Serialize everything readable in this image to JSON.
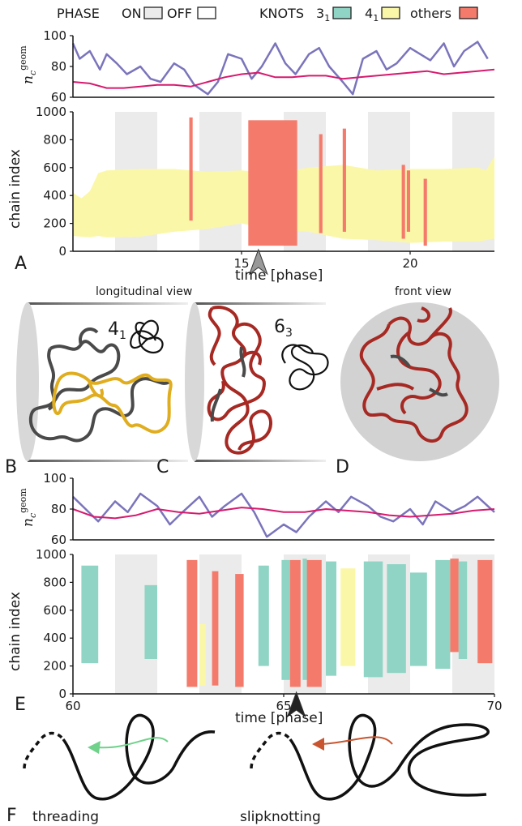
{
  "legend": {
    "phase_label": "PHASE",
    "on_label": "ON",
    "off_label": "OFF",
    "knots_label": "KNOTS",
    "k31_base": "3",
    "k31_sub": "1",
    "k41_base": "4",
    "k41_sub": "1",
    "others_label": "others"
  },
  "colors": {
    "phase_on": "#ebebeb",
    "knot_31": "#8fd4c4",
    "knot_41": "#fbf7a8",
    "knot_other": "#f47b6c",
    "nc_trace": "#7a74bb",
    "nc_mean": "#d61a6e",
    "chain_dark": "#4a4a4a",
    "knot_gold": "#e0ad1f",
    "chain_red": "#a62923",
    "arrow_green": "#6fd18a",
    "arrow_red": "#c8552f"
  },
  "panels": {
    "A": "A",
    "B": "B",
    "C": "C",
    "D": "D",
    "E": "E",
    "F": "F"
  },
  "nc_ylabel_base": "n",
  "nc_ylabel_sub": "c",
  "nc_ylabel_sup": "geom",
  "chain_ylabel": "chain index",
  "xlabel": "time [phase]",
  "views": {
    "longitudinal": "longitudinal view",
    "front": "front view",
    "knot41_base": "4",
    "knot41_sub": "1",
    "knot63_base": "6",
    "knot63_sub": "3"
  },
  "mechanisms": {
    "threading": "threading",
    "slipknotting": "slipknotting"
  },
  "chart_data": [
    {
      "id": "nc-top",
      "type": "line",
      "yticks": [
        "100",
        "80",
        "60"
      ],
      "ylim": [
        60,
        100
      ],
      "xlim": [
        10,
        22.5
      ],
      "series": [
        {
          "role": "trace",
          "x": [
            10,
            10.2,
            10.5,
            10.8,
            11,
            11.3,
            11.6,
            12,
            12.3,
            12.6,
            13,
            13.3,
            13.6,
            14,
            14.3,
            14.6,
            15,
            15.3,
            15.6,
            16,
            16.3,
            16.6,
            17,
            17.3,
            17.6,
            18,
            18.3,
            18.6,
            19,
            19.3,
            19.6,
            20,
            20.3,
            20.6,
            21,
            21.3,
            21.6,
            22,
            22.3
          ],
          "values": [
            95,
            85,
            90,
            78,
            88,
            82,
            75,
            80,
            72,
            70,
            82,
            78,
            68,
            62,
            70,
            88,
            85,
            72,
            80,
            95,
            82,
            75,
            88,
            92,
            80,
            70,
            62,
            85,
            90,
            78,
            82,
            92,
            88,
            84,
            95,
            80,
            90,
            96,
            85
          ]
        },
        {
          "role": "mean",
          "x": [
            10,
            10.5,
            11,
            11.5,
            12,
            12.5,
            13,
            13.5,
            14,
            14.5,
            15,
            15.5,
            16,
            16.5,
            17,
            17.5,
            18,
            18.5,
            19,
            19.5,
            20,
            20.5,
            21,
            21.5,
            22,
            22.5
          ],
          "values": [
            70,
            69,
            66,
            66,
            67,
            68,
            68,
            67,
            70,
            73,
            75,
            76,
            73,
            73,
            74,
            74,
            72,
            73,
            74,
            75,
            76,
            77,
            75,
            76,
            77,
            78
          ]
        }
      ]
    },
    {
      "id": "chain-top",
      "type": "area",
      "yticks": [
        "1000",
        "800",
        "600",
        "400",
        "200",
        "0"
      ],
      "ylim": [
        0,
        1000
      ],
      "xlim": [
        10,
        22.5
      ],
      "xticks": [
        "15",
        "20"
      ],
      "xtick_values": [
        15,
        20
      ],
      "phase_on": [
        [
          11.25,
          12.5
        ],
        [
          13.75,
          15
        ],
        [
          16.25,
          17.5
        ],
        [
          18.75,
          20
        ],
        [
          21.25,
          22.5
        ]
      ],
      "arrow_at": 15.5,
      "band": {
        "x": [
          10,
          10.25,
          10.5,
          10.75,
          11,
          12,
          13,
          14,
          15,
          16,
          17,
          18,
          19,
          20,
          21,
          22,
          22.25,
          22.5
        ],
        "lo": [
          110,
          105,
          100,
          110,
          100,
          105,
          140,
          160,
          200,
          150,
          140,
          90,
          80,
          60,
          70,
          70,
          80,
          90
        ],
        "hi": [
          420,
          380,
          430,
          560,
          580,
          590,
          590,
          570,
          580,
          560,
          600,
          620,
          580,
          590,
          590,
          600,
          580,
          680
        ]
      },
      "segments": [
        {
          "kind": "other",
          "x0": 13.45,
          "x1": 13.55,
          "lo": 220,
          "hi": 960
        },
        {
          "kind": "other",
          "x0": 15.2,
          "x1": 16.65,
          "lo": 40,
          "hi": 940
        },
        {
          "kind": "other",
          "x0": 17.3,
          "x1": 17.4,
          "lo": 130,
          "hi": 840
        },
        {
          "kind": "other",
          "x0": 18.0,
          "x1": 18.1,
          "lo": 140,
          "hi": 880
        },
        {
          "kind": "other",
          "x0": 19.75,
          "x1": 19.85,
          "lo": 90,
          "hi": 620
        },
        {
          "kind": "other",
          "x0": 19.9,
          "x1": 20.0,
          "lo": 140,
          "hi": 580
        },
        {
          "kind": "other",
          "x0": 20.4,
          "x1": 20.5,
          "lo": 40,
          "hi": 520
        }
      ]
    },
    {
      "id": "nc-bottom",
      "type": "line",
      "yticks": [
        "100",
        "80",
        "60"
      ],
      "ylim": [
        60,
        100
      ],
      "xlim": [
        60,
        70
      ],
      "series": [
        {
          "role": "trace",
          "x": [
            60,
            60.3,
            60.6,
            61,
            61.3,
            61.6,
            62,
            62.3,
            62.6,
            63,
            63.3,
            63.6,
            64,
            64.3,
            64.6,
            65,
            65.3,
            65.6,
            66,
            66.3,
            66.6,
            67,
            67.3,
            67.6,
            68,
            68.3,
            68.6,
            69,
            69.3,
            69.6,
            70
          ],
          "values": [
            88,
            80,
            72,
            85,
            78,
            90,
            82,
            70,
            78,
            88,
            75,
            82,
            90,
            78,
            62,
            70,
            65,
            75,
            85,
            78,
            88,
            82,
            75,
            72,
            80,
            70,
            85,
            78,
            82,
            88,
            78
          ]
        },
        {
          "role": "mean",
          "x": [
            60,
            60.5,
            61,
            61.5,
            62,
            62.5,
            63,
            63.5,
            64,
            64.5,
            65,
            65.5,
            66,
            66.5,
            67,
            67.5,
            68,
            68.5,
            69,
            69.5,
            70
          ],
          "values": [
            80,
            75,
            74,
            76,
            80,
            78,
            77,
            79,
            81,
            80,
            78,
            78,
            80,
            79,
            78,
            76,
            75,
            76,
            77,
            79,
            80
          ]
        }
      ]
    },
    {
      "id": "chain-bottom",
      "type": "area",
      "yticks": [
        "1000",
        "800",
        "600",
        "400",
        "200",
        "0"
      ],
      "ylim": [
        0,
        1000
      ],
      "xlim": [
        60,
        70
      ],
      "xticks": [
        "60",
        "65",
        "70"
      ],
      "xtick_values": [
        60,
        65,
        70
      ],
      "phase_on": [
        [
          61,
          62
        ],
        [
          63,
          64
        ],
        [
          65,
          66
        ],
        [
          67,
          68
        ],
        [
          69,
          70
        ]
      ],
      "arrow_at": 65.3,
      "segments": [
        {
          "kind": "k31",
          "x0": 60.2,
          "x1": 60.6,
          "lo": 220,
          "hi": 920
        },
        {
          "kind": "k31",
          "x0": 61.7,
          "x1": 62.0,
          "lo": 250,
          "hi": 780
        },
        {
          "kind": "other",
          "x0": 62.7,
          "x1": 62.95,
          "lo": 50,
          "hi": 960
        },
        {
          "kind": "k41",
          "x0": 63.0,
          "x1": 63.15,
          "lo": 60,
          "hi": 500
        },
        {
          "kind": "other",
          "x0": 63.3,
          "x1": 63.45,
          "lo": 60,
          "hi": 880
        },
        {
          "kind": "other",
          "x0": 63.85,
          "x1": 64.05,
          "lo": 50,
          "hi": 860
        },
        {
          "kind": "k31",
          "x0": 64.4,
          "x1": 64.65,
          "lo": 200,
          "hi": 920
        },
        {
          "kind": "k31",
          "x0": 64.95,
          "x1": 65.15,
          "lo": 100,
          "hi": 960
        },
        {
          "kind": "other",
          "x0": 65.15,
          "x1": 65.4,
          "lo": 50,
          "hi": 960
        },
        {
          "kind": "k31",
          "x0": 65.45,
          "x1": 65.55,
          "lo": 100,
          "hi": 970
        },
        {
          "kind": "other",
          "x0": 65.55,
          "x1": 65.9,
          "lo": 50,
          "hi": 960
        },
        {
          "kind": "k31",
          "x0": 66.0,
          "x1": 66.25,
          "lo": 130,
          "hi": 950
        },
        {
          "kind": "k41",
          "x0": 66.35,
          "x1": 66.7,
          "lo": 200,
          "hi": 900
        },
        {
          "kind": "k31",
          "x0": 66.9,
          "x1": 67.35,
          "lo": 120,
          "hi": 950
        },
        {
          "kind": "k31",
          "x0": 67.45,
          "x1": 67.9,
          "lo": 150,
          "hi": 930
        },
        {
          "kind": "k31",
          "x0": 68.0,
          "x1": 68.4,
          "lo": 200,
          "hi": 870
        },
        {
          "kind": "k31",
          "x0": 68.6,
          "x1": 68.95,
          "lo": 180,
          "hi": 960
        },
        {
          "kind": "other",
          "x0": 68.95,
          "x1": 69.15,
          "lo": 300,
          "hi": 970
        },
        {
          "kind": "k31",
          "x0": 69.15,
          "x1": 69.35,
          "lo": 250,
          "hi": 950
        },
        {
          "kind": "other",
          "x0": 69.6,
          "x1": 69.95,
          "lo": 220,
          "hi": 960
        }
      ]
    }
  ]
}
